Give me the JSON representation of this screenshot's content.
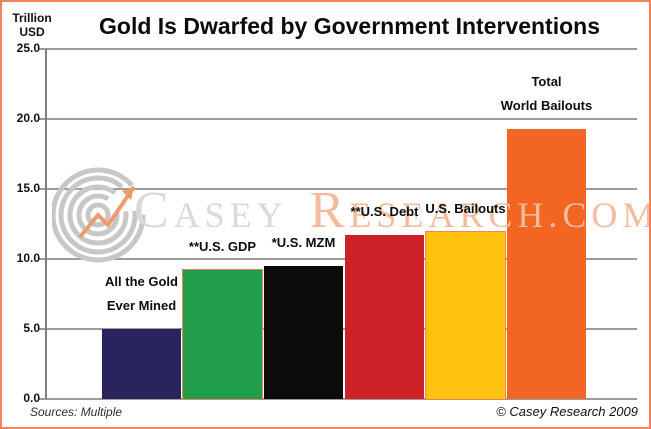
{
  "header": {
    "y_axis_unit": "Trillion\nUSD",
    "title": "Gold Is Dwarfed by Government Interventions"
  },
  "watermark": {
    "logo_icon": "casey-spiral-logo",
    "part1": "Casey",
    "part2": "Research.com",
    "gray_color": "#d9d9d9",
    "salmon_color": "#f5bb9c"
  },
  "footer": {
    "sources": "Sources: Multiple",
    "copyright": "© Casey Research 2009"
  },
  "frame_color": "#f0825f",
  "chart_data": {
    "type": "bar",
    "title": "Gold Is Dwarfed by Government Interventions",
    "ylabel": "Trillion USD",
    "ylim": [
      0,
      25
    ],
    "ytick_step": 5,
    "ytick_labels": [
      "0.0",
      "5.0",
      "10.0",
      "15.0",
      "20.0",
      "25.0"
    ],
    "grid": true,
    "categories": [
      "All the Gold\nEver Mined",
      "**U.S. GDP",
      "*U.S. MZM",
      "**U.S. Debt",
      "U.S. Bailouts",
      "Total\nWorld Bailouts"
    ],
    "values": [
      5.0,
      9.2,
      9.5,
      11.7,
      11.9,
      19.3
    ],
    "colors": [
      "#28235a",
      "#219e4b",
      "#0b0b0b",
      "#cd2027",
      "#ffc20e",
      "#f26522"
    ],
    "outline_colors": [
      null,
      "#f0825f",
      null,
      null,
      "#f0825f",
      null
    ],
    "gridline_color": "#9c9c9c",
    "axis_color": "#7f7f7f"
  }
}
